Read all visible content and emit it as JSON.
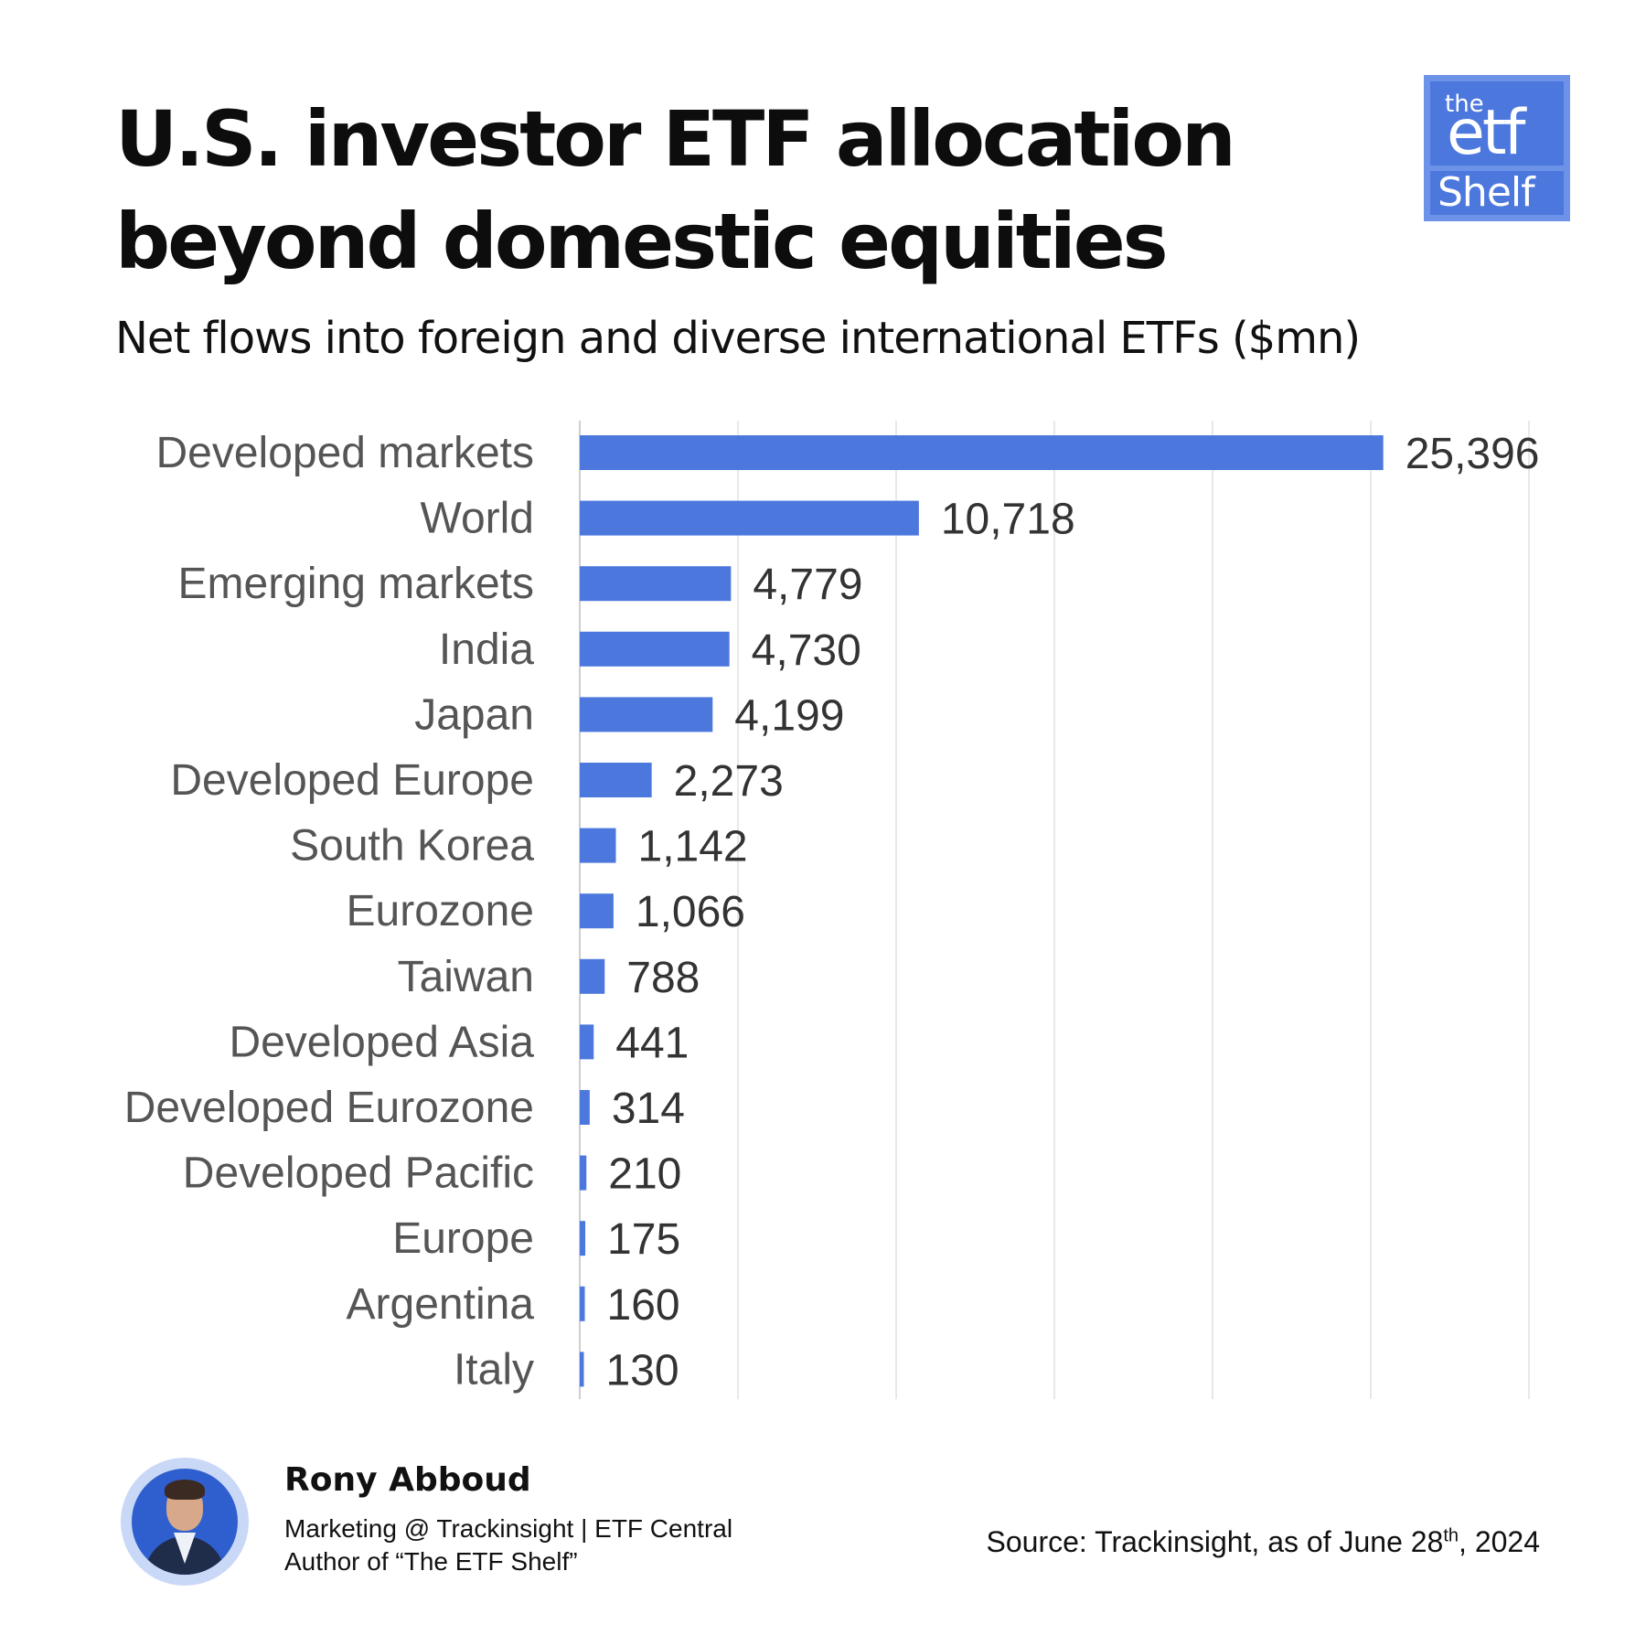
{
  "header": {
    "title_line1": "U.S. investor ETF allocation",
    "title_line2": "beyond domestic equities",
    "subtitle": "Net flows into foreign and diverse international ETFs ($mn)"
  },
  "logo": {
    "line1": "the",
    "line2": "etf",
    "line3": "Shelf"
  },
  "chart_data": {
    "type": "bar",
    "orientation": "horizontal",
    "categories": [
      "Developed markets",
      "World",
      "Emerging markets",
      "India",
      "Japan",
      "Developed Europe",
      "South Korea",
      "Eurozone",
      "Taiwan",
      "Developed Asia",
      "Developed Eurozone",
      "Developed Pacific",
      "Europe",
      "Argentina",
      "Italy"
    ],
    "values": [
      25396,
      10718,
      4779,
      4730,
      4199,
      2273,
      1142,
      1066,
      788,
      441,
      314,
      210,
      175,
      160,
      130
    ],
    "value_labels": [
      "25,396",
      "10,718",
      "4,779",
      "4,730",
      "4,199",
      "2,273",
      "1,142",
      "1,066",
      "788",
      "441",
      "314",
      "210",
      "175",
      "160",
      "130"
    ],
    "xlim": [
      0,
      30000
    ],
    "grid": true,
    "bar_color": "#4c78de",
    "grid_color": "#e8e8e8"
  },
  "footer": {
    "author_name": "Rony Abboud",
    "author_line1": "Marketing @ Trackinsight | ETF Central",
    "author_line2": "Author of “The ETF Shelf”",
    "source_prefix": "Source: Trackinsight, as of June 28",
    "source_sup": "th",
    "source_suffix": ", 2024"
  }
}
